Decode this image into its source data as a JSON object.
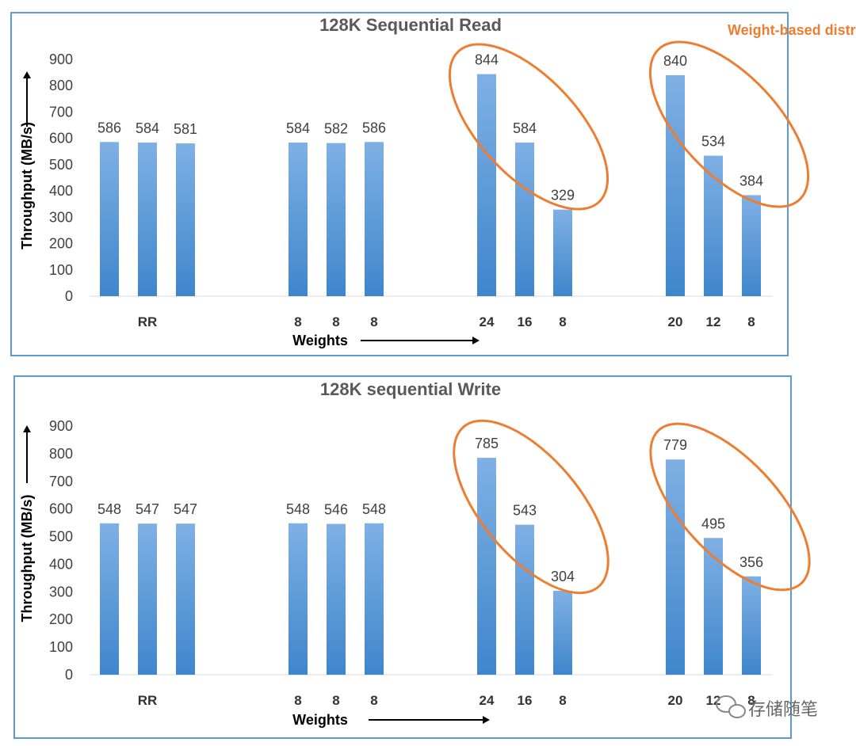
{
  "chart_data": [
    {
      "type": "bar",
      "title": "128K Sequential Read",
      "ylabel": "Throughput (MB/s)",
      "xlabel": "Weights",
      "ylim": [
        0,
        900
      ],
      "yticks": [
        0,
        100,
        200,
        300,
        400,
        500,
        600,
        700,
        800,
        900
      ],
      "groups": [
        {
          "label": "RR",
          "categories": [
            "",
            "RR",
            ""
          ],
          "values": [
            586,
            584,
            581
          ]
        },
        {
          "label": "8 8 8",
          "categories": [
            "8",
            "8",
            "8"
          ],
          "values": [
            584,
            582,
            586
          ]
        },
        {
          "label": "24 16 8",
          "categories": [
            "24",
            "16",
            "8"
          ],
          "values": [
            844,
            584,
            329
          ],
          "highlighted": true
        },
        {
          "label": "20 12 8",
          "categories": [
            "20",
            "12",
            "8"
          ],
          "values": [
            840,
            534,
            384
          ],
          "highlighted": true
        }
      ],
      "annotation": "Weight-based distribution"
    },
    {
      "type": "bar",
      "title": "128K sequential Write",
      "ylabel": "Throughput (MB/s)",
      "xlabel": "Weights",
      "ylim": [
        0,
        900
      ],
      "yticks": [
        0,
        100,
        200,
        300,
        400,
        500,
        600,
        700,
        800,
        900
      ],
      "groups": [
        {
          "label": "RR",
          "categories": [
            "",
            "RR",
            ""
          ],
          "values": [
            548,
            547,
            547
          ]
        },
        {
          "label": "8 8 8",
          "categories": [
            "8",
            "8",
            "8"
          ],
          "values": [
            548,
            546,
            548
          ]
        },
        {
          "label": "24 16 8",
          "categories": [
            "24",
            "16",
            "8"
          ],
          "values": [
            785,
            543,
            304
          ],
          "highlighted": true
        },
        {
          "label": "20 12 8",
          "categories": [
            "20",
            "12",
            "8"
          ],
          "values": [
            779,
            495,
            356
          ],
          "highlighted": true
        }
      ]
    }
  ],
  "colors": {
    "bar_top": "#7FB0E4",
    "bar_bottom": "#3F86CC",
    "frame": "#5B9BD5",
    "highlight": "#ED7D31"
  },
  "watermark": {
    "text": "存储随笔",
    "icon": "wechat-icon"
  }
}
